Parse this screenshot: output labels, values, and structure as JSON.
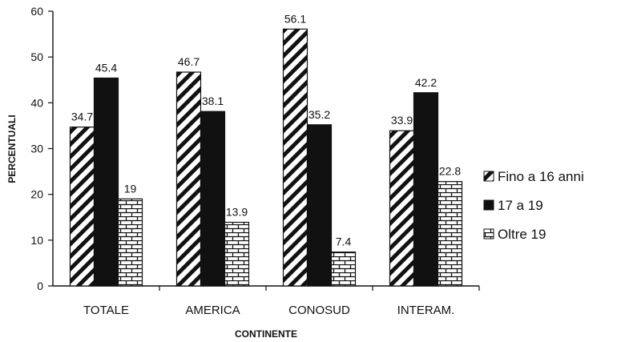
{
  "chart_data": {
    "type": "bar",
    "title": "",
    "xlabel": "CONTINENTE",
    "ylabel": "PERCENTUALI",
    "ylim": [
      0,
      60
    ],
    "yticks": [
      0,
      10,
      20,
      30,
      40,
      50,
      60
    ],
    "grid": false,
    "legend_position": "right",
    "categories": [
      "TOTALE",
      "AMERICA",
      "CONOSUD",
      "INTERAM."
    ],
    "series": [
      {
        "name": "Fino a 16 anni",
        "values": [
          34.7,
          46.7,
          56.1,
          33.9
        ],
        "labels": [
          "34.7",
          "46.7",
          "56.1",
          "33.9"
        ],
        "pattern": "diagonal-stripes",
        "color": "#111111"
      },
      {
        "name": "17 a 19",
        "values": [
          45.4,
          38.1,
          35.2,
          42.2
        ],
        "labels": [
          "45.4",
          "38.1",
          "35.2",
          "42.2"
        ],
        "pattern": "solid",
        "color": "#111111"
      },
      {
        "name": "Oltre 19",
        "values": [
          19,
          13.9,
          7.4,
          22.8
        ],
        "labels": [
          "19",
          "13.9",
          "7.4",
          "22.8"
        ],
        "pattern": "brick",
        "color": "#111111"
      }
    ]
  }
}
